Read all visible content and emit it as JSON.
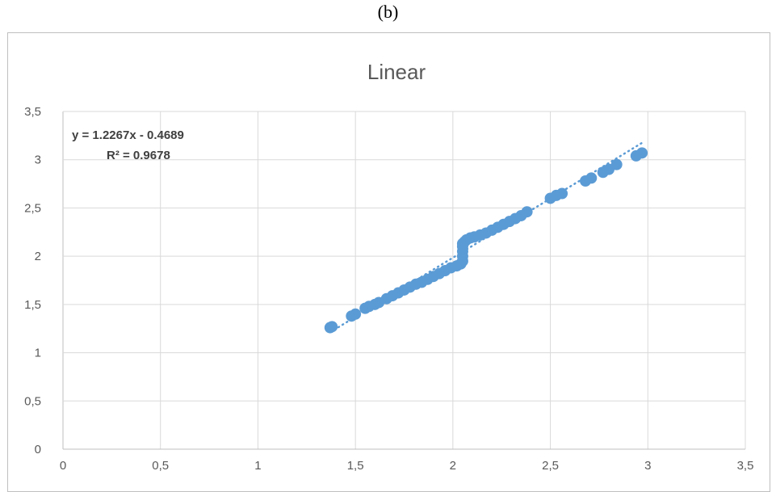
{
  "caption": "(b)",
  "colors": {
    "series": "#5B9BD5",
    "grid": "#D9D9D9",
    "text": "#595959",
    "frame": "#BFBFBF"
  },
  "chart_data": {
    "type": "scatter",
    "title": "Linear",
    "xlabel": "",
    "ylabel": "",
    "xlim": [
      0,
      3.5
    ],
    "ylim": [
      0,
      3.5
    ],
    "x_ticks": [
      "0",
      "0,5",
      "1",
      "1,5",
      "2",
      "2,5",
      "3",
      "3,5"
    ],
    "y_ticks": [
      "0",
      "0,5",
      "1",
      "1,5",
      "2",
      "2,5",
      "3",
      "3,5"
    ],
    "grid": true,
    "legend": "none",
    "trendline": {
      "type": "linear",
      "slope": 1.2267,
      "intercept": -0.4689,
      "x_range": [
        1.37,
        2.98
      ],
      "equation_label": "y = 1.2267x - 0.4689",
      "r2_label": "R² = 0.9678"
    },
    "series": [
      {
        "x": [
          1.37,
          1.38,
          1.48,
          1.5,
          1.55,
          1.57,
          1.6,
          1.62,
          1.66,
          1.69,
          1.72,
          1.75,
          1.78,
          1.81,
          1.84,
          1.87,
          1.9,
          1.93,
          1.96,
          1.99,
          2.02,
          2.04,
          2.05,
          2.05,
          2.05,
          2.05,
          2.05,
          2.06,
          2.07,
          2.09,
          2.11,
          2.14,
          2.17,
          2.2,
          2.23,
          2.26,
          2.29,
          2.32,
          2.35,
          2.38,
          2.5,
          2.53,
          2.56,
          2.68,
          2.71,
          2.77,
          2.8,
          2.84,
          2.94,
          2.97
        ],
        "y": [
          1.26,
          1.27,
          1.38,
          1.4,
          1.46,
          1.48,
          1.5,
          1.52,
          1.56,
          1.59,
          1.62,
          1.65,
          1.68,
          1.71,
          1.73,
          1.76,
          1.79,
          1.82,
          1.85,
          1.88,
          1.9,
          1.92,
          1.95,
          2.0,
          2.05,
          2.1,
          2.13,
          2.15,
          2.17,
          2.19,
          2.2,
          2.22,
          2.24,
          2.27,
          2.3,
          2.33,
          2.36,
          2.39,
          2.42,
          2.46,
          2.6,
          2.63,
          2.65,
          2.78,
          2.81,
          2.87,
          2.9,
          2.95,
          3.04,
          3.07
        ]
      }
    ]
  }
}
